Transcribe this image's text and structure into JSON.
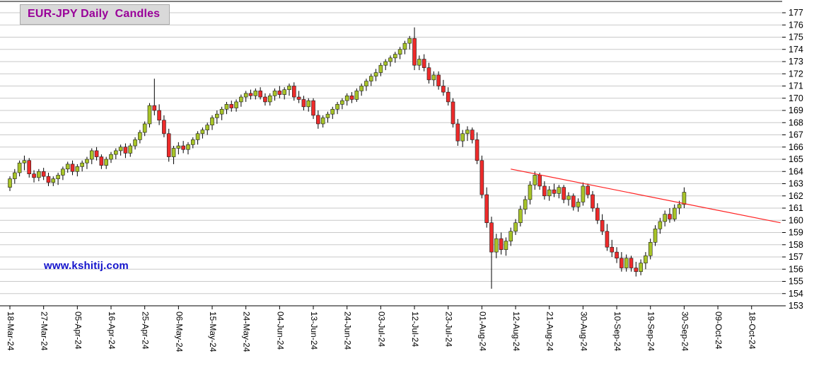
{
  "header": {
    "title": "EUR-JPY Daily  Candles"
  },
  "watermark": {
    "text": "www.kshitij.com"
  },
  "colors": {
    "up_candle": "#a8c428",
    "down_candle": "#ee2b2b",
    "candle_border": "#1a1a1a",
    "wick": "#000000",
    "trendline": "#ff2222",
    "grid": "#c9c9c9",
    "axis": "#000000",
    "title_text": "#990099",
    "title_bg": "#d9d9d9",
    "watermark_text": "#1414cc"
  },
  "chart_data": {
    "type": "candlestick",
    "title": "EUR-JPY Daily  Candles",
    "ylabel": "",
    "xlabel": "",
    "ylim": [
      153,
      177
    ],
    "y_tick_step": 1,
    "grid": true,
    "legend_position": "none",
    "x_labels": [
      {
        "slot": 0,
        "label": "18-Mar-24"
      },
      {
        "slot": 7,
        "label": "27-Mar-24"
      },
      {
        "slot": 14,
        "label": "05-Apr-24"
      },
      {
        "slot": 21,
        "label": "16-Apr-24"
      },
      {
        "slot": 28,
        "label": "25-Apr-24"
      },
      {
        "slot": 35,
        "label": "06-May-24"
      },
      {
        "slot": 42,
        "label": "15-May-24"
      },
      {
        "slot": 49,
        "label": "24-May-24"
      },
      {
        "slot": 56,
        "label": "04-Jun-24"
      },
      {
        "slot": 63,
        "label": "13-Jun-24"
      },
      {
        "slot": 70,
        "label": "24-Jun-24"
      },
      {
        "slot": 77,
        "label": "03-Jul-24"
      },
      {
        "slot": 84,
        "label": "12-Jul-24"
      },
      {
        "slot": 91,
        "label": "23-Jul-24"
      },
      {
        "slot": 98,
        "label": "01-Aug-24"
      },
      {
        "slot": 105,
        "label": "12-Aug-24"
      },
      {
        "slot": 112,
        "label": "21-Aug-24"
      },
      {
        "slot": 119,
        "label": "30-Aug-24"
      },
      {
        "slot": 126,
        "label": "10-Sep-24"
      },
      {
        "slot": 133,
        "label": "19-Sep-24"
      },
      {
        "slot": 140,
        "label": "30-Sep-24"
      },
      {
        "slot": 147,
        "label": "09-Oct-24"
      },
      {
        "slot": 154,
        "label": "18-Oct-24"
      }
    ],
    "ohlc_format": [
      "date",
      "open",
      "high",
      "low",
      "close"
    ],
    "candles": [
      [
        "18-Mar-24",
        162.7,
        163.6,
        162.4,
        163.4
      ],
      [
        "19-Mar-24",
        163.4,
        164.2,
        163.0,
        163.9
      ],
      [
        "20-Mar-24",
        163.9,
        164.9,
        163.6,
        164.7
      ],
      [
        "21-Mar-24",
        164.7,
        165.3,
        164.1,
        164.9
      ],
      [
        "22-Mar-24",
        164.9,
        165.1,
        163.5,
        163.8
      ],
      [
        "25-Mar-24",
        163.8,
        164.1,
        163.1,
        163.5
      ],
      [
        "26-Mar-24",
        163.5,
        164.2,
        163.2,
        164.0
      ],
      [
        "27-Mar-24",
        164.0,
        164.3,
        163.3,
        163.6
      ],
      [
        "28-Mar-24",
        163.6,
        163.9,
        162.8,
        163.1
      ],
      [
        "29-Mar-24",
        163.1,
        163.6,
        162.8,
        163.4
      ],
      [
        "01-Apr-24",
        163.4,
        163.9,
        162.9,
        163.7
      ],
      [
        "02-Apr-24",
        163.7,
        164.4,
        163.3,
        164.2
      ],
      [
        "03-Apr-24",
        164.2,
        164.8,
        163.9,
        164.6
      ],
      [
        "04-Apr-24",
        164.6,
        164.9,
        163.7,
        164.0
      ],
      [
        "05-Apr-24",
        164.0,
        164.6,
        163.6,
        164.4
      ],
      [
        "08-Apr-24",
        164.4,
        164.9,
        164.0,
        164.7
      ],
      [
        "09-Apr-24",
        164.7,
        165.2,
        164.2,
        165.0
      ],
      [
        "10-Apr-24",
        165.0,
        165.9,
        164.6,
        165.7
      ],
      [
        "11-Apr-24",
        165.7,
        166.0,
        164.9,
        165.2
      ],
      [
        "12-Apr-24",
        165.2,
        165.4,
        164.2,
        164.5
      ],
      [
        "15-Apr-24",
        164.5,
        165.2,
        164.2,
        165.0
      ],
      [
        "16-Apr-24",
        165.0,
        165.6,
        164.7,
        165.4
      ],
      [
        "17-Apr-24",
        165.4,
        165.9,
        165.0,
        165.7
      ],
      [
        "18-Apr-24",
        165.7,
        166.2,
        165.3,
        166.0
      ],
      [
        "19-Apr-24",
        166.0,
        166.3,
        165.1,
        165.5
      ],
      [
        "22-Apr-24",
        165.5,
        166.3,
        165.2,
        166.1
      ],
      [
        "23-Apr-24",
        166.1,
        166.8,
        165.8,
        166.6
      ],
      [
        "24-Apr-24",
        166.6,
        167.4,
        166.3,
        167.2
      ],
      [
        "25-Apr-24",
        167.2,
        168.1,
        166.9,
        167.9
      ],
      [
        "26-Apr-24",
        167.9,
        169.6,
        167.6,
        169.4
      ],
      [
        "29-Apr-24",
        169.4,
        171.6,
        168.6,
        169.0
      ],
      [
        "30-Apr-24",
        169.0,
        169.5,
        167.8,
        168.2
      ],
      [
        "01-May-24",
        168.2,
        168.6,
        166.8,
        167.1
      ],
      [
        "02-May-24",
        167.1,
        167.5,
        164.8,
        165.2
      ],
      [
        "03-May-24",
        165.2,
        166.1,
        164.6,
        165.9
      ],
      [
        "06-May-24",
        165.9,
        166.4,
        165.4,
        166.1
      ],
      [
        "07-May-24",
        166.1,
        166.5,
        165.5,
        165.8
      ],
      [
        "08-May-24",
        165.8,
        166.4,
        165.4,
        166.2
      ],
      [
        "09-May-24",
        166.2,
        166.8,
        165.9,
        166.6
      ],
      [
        "10-May-24",
        166.6,
        167.3,
        166.2,
        167.1
      ],
      [
        "13-May-24",
        167.1,
        167.6,
        166.7,
        167.4
      ],
      [
        "14-May-24",
        167.4,
        168.0,
        167.0,
        167.8
      ],
      [
        "15-May-24",
        167.8,
        168.6,
        167.4,
        168.4
      ],
      [
        "16-May-24",
        168.4,
        169.0,
        167.9,
        168.7
      ],
      [
        "17-May-24",
        168.7,
        169.3,
        168.2,
        169.1
      ],
      [
        "20-May-24",
        169.1,
        169.7,
        168.7,
        169.5
      ],
      [
        "21-May-24",
        169.5,
        169.8,
        168.9,
        169.2
      ],
      [
        "22-May-24",
        169.2,
        169.9,
        168.9,
        169.7
      ],
      [
        "23-May-24",
        169.7,
        170.3,
        169.3,
        170.1
      ],
      [
        "24-May-24",
        170.1,
        170.6,
        169.7,
        170.4
      ],
      [
        "27-May-24",
        170.4,
        170.7,
        169.9,
        170.2
      ],
      [
        "28-May-24",
        170.2,
        170.8,
        169.9,
        170.6
      ],
      [
        "29-May-24",
        170.6,
        170.9,
        169.9,
        170.1
      ],
      [
        "30-May-24",
        170.1,
        170.4,
        169.4,
        169.7
      ],
      [
        "31-May-24",
        169.7,
        170.4,
        169.4,
        170.2
      ],
      [
        "03-Jun-24",
        170.2,
        170.8,
        169.8,
        170.6
      ],
      [
        "04-Jun-24",
        170.6,
        171.0,
        170.0,
        170.3
      ],
      [
        "05-Jun-24",
        170.3,
        170.9,
        169.9,
        170.7
      ],
      [
        "06-Jun-24",
        170.7,
        171.2,
        170.2,
        171.0
      ],
      [
        "07-Jun-24",
        171.0,
        171.3,
        169.8,
        170.1
      ],
      [
        "10-Jun-24",
        170.1,
        170.6,
        169.6,
        169.9
      ],
      [
        "11-Jun-24",
        169.9,
        170.2,
        169.0,
        169.3
      ],
      [
        "12-Jun-24",
        169.3,
        170.0,
        168.9,
        169.8
      ],
      [
        "13-Jun-24",
        169.8,
        170.0,
        168.3,
        168.6
      ],
      [
        "14-Jun-24",
        168.6,
        169.0,
        167.5,
        167.9
      ],
      [
        "17-Jun-24",
        167.9,
        168.6,
        167.6,
        168.4
      ],
      [
        "18-Jun-24",
        168.4,
        168.9,
        168.0,
        168.7
      ],
      [
        "19-Jun-24",
        168.7,
        169.3,
        168.3,
        169.1
      ],
      [
        "20-Jun-24",
        169.1,
        169.7,
        168.7,
        169.5
      ],
      [
        "21-Jun-24",
        169.5,
        170.0,
        169.1,
        169.8
      ],
      [
        "24-Jun-24",
        169.8,
        170.4,
        169.4,
        170.2
      ],
      [
        "25-Jun-24",
        170.2,
        170.5,
        169.6,
        169.9
      ],
      [
        "26-Jun-24",
        169.9,
        170.8,
        169.7,
        170.6
      ],
      [
        "27-Jun-24",
        170.6,
        171.2,
        170.2,
        171.0
      ],
      [
        "28-Jun-24",
        171.0,
        171.6,
        170.6,
        171.4
      ],
      [
        "01-Jul-24",
        171.4,
        172.0,
        171.0,
        171.8
      ],
      [
        "02-Jul-24",
        171.8,
        172.4,
        171.4,
        172.1
      ],
      [
        "03-Jul-24",
        172.1,
        172.9,
        171.8,
        172.7
      ],
      [
        "04-Jul-24",
        172.7,
        173.2,
        172.3,
        173.0
      ],
      [
        "05-Jul-24",
        173.0,
        173.5,
        172.6,
        173.3
      ],
      [
        "08-Jul-24",
        173.3,
        173.8,
        172.9,
        173.6
      ],
      [
        "09-Jul-24",
        173.6,
        174.2,
        173.2,
        174.0
      ],
      [
        "10-Jul-24",
        174.0,
        174.7,
        173.6,
        174.5
      ],
      [
        "11-Jul-24",
        174.5,
        175.1,
        174.0,
        174.9
      ],
      [
        "12-Jul-24",
        174.9,
        175.8,
        172.3,
        172.7
      ],
      [
        "15-Jul-24",
        172.7,
        173.5,
        172.3,
        173.2
      ],
      [
        "16-Jul-24",
        173.2,
        173.6,
        172.2,
        172.5
      ],
      [
        "17-Jul-24",
        172.5,
        172.9,
        171.2,
        171.5
      ],
      [
        "18-Jul-24",
        171.5,
        172.2,
        171.0,
        171.9
      ],
      [
        "19-Jul-24",
        171.9,
        172.2,
        170.7,
        171.0
      ],
      [
        "22-Jul-24",
        171.0,
        171.5,
        170.2,
        170.5
      ],
      [
        "23-Jul-24",
        170.5,
        170.9,
        169.4,
        169.7
      ],
      [
        "24-Jul-24",
        169.7,
        170.0,
        167.6,
        167.9
      ],
      [
        "25-Jul-24",
        167.9,
        168.3,
        166.1,
        166.5
      ],
      [
        "26-Jul-24",
        166.5,
        167.4,
        166.0,
        167.1
      ],
      [
        "29-Jul-24",
        167.1,
        167.7,
        166.5,
        167.4
      ],
      [
        "30-Jul-24",
        167.4,
        167.6,
        166.3,
        166.6
      ],
      [
        "31-Jul-24",
        166.6,
        167.2,
        164.6,
        164.9
      ],
      [
        "01-Aug-24",
        164.9,
        165.3,
        161.8,
        162.1
      ],
      [
        "02-Aug-24",
        162.1,
        162.7,
        159.4,
        159.8
      ],
      [
        "05-Aug-24",
        159.8,
        160.3,
        154.4,
        157.4
      ],
      [
        "06-Aug-24",
        157.4,
        158.9,
        156.9,
        158.5
      ],
      [
        "07-Aug-24",
        158.5,
        159.0,
        157.2,
        157.6
      ],
      [
        "08-Aug-24",
        157.6,
        158.6,
        157.1,
        158.3
      ],
      [
        "09-Aug-24",
        158.3,
        159.4,
        157.9,
        159.1
      ],
      [
        "12-Aug-24",
        159.1,
        160.1,
        158.8,
        159.8
      ],
      [
        "13-Aug-24",
        159.8,
        161.2,
        159.5,
        160.9
      ],
      [
        "14-Aug-24",
        160.9,
        162.0,
        160.5,
        161.7
      ],
      [
        "15-Aug-24",
        161.7,
        163.2,
        161.3,
        162.9
      ],
      [
        "16-Aug-24",
        162.9,
        164.0,
        162.5,
        163.7
      ],
      [
        "19-Aug-24",
        163.7,
        163.9,
        162.5,
        162.8
      ],
      [
        "20-Aug-24",
        162.8,
        163.2,
        161.7,
        162.0
      ],
      [
        "21-Aug-24",
        162.0,
        162.8,
        161.6,
        162.5
      ],
      [
        "22-Aug-24",
        162.5,
        163.0,
        161.9,
        162.2
      ],
      [
        "23-Aug-24",
        162.2,
        162.9,
        161.8,
        162.7
      ],
      [
        "26-Aug-24",
        162.7,
        162.9,
        161.4,
        161.7
      ],
      [
        "27-Aug-24",
        161.7,
        162.3,
        161.2,
        162.0
      ],
      [
        "28-Aug-24",
        162.0,
        162.2,
        160.8,
        161.1
      ],
      [
        "29-Aug-24",
        161.1,
        161.8,
        160.7,
        161.5
      ],
      [
        "30-Aug-24",
        161.5,
        163.1,
        161.2,
        162.8
      ],
      [
        "02-Sep-24",
        162.8,
        163.0,
        161.8,
        162.1
      ],
      [
        "03-Sep-24",
        162.1,
        162.4,
        160.7,
        161.0
      ],
      [
        "04-Sep-24",
        161.0,
        161.4,
        159.7,
        160.0
      ],
      [
        "05-Sep-24",
        160.0,
        160.5,
        158.8,
        159.1
      ],
      [
        "06-Sep-24",
        159.1,
        159.7,
        157.5,
        157.8
      ],
      [
        "09-Sep-24",
        157.8,
        158.4,
        157.0,
        157.4
      ],
      [
        "10-Sep-24",
        157.4,
        157.8,
        156.5,
        156.9
      ],
      [
        "11-Sep-24",
        156.9,
        157.4,
        155.8,
        156.1
      ],
      [
        "12-Sep-24",
        156.1,
        157.2,
        155.8,
        156.9
      ],
      [
        "13-Sep-24",
        156.9,
        157.1,
        155.8,
        156.1
      ],
      [
        "16-Sep-24",
        156.1,
        156.6,
        155.4,
        155.8
      ],
      [
        "17-Sep-24",
        155.8,
        156.8,
        155.5,
        156.5
      ],
      [
        "18-Sep-24",
        156.5,
        157.4,
        156.0,
        157.1
      ],
      [
        "19-Sep-24",
        157.1,
        158.5,
        156.8,
        158.2
      ],
      [
        "20-Sep-24",
        158.2,
        159.6,
        157.9,
        159.3
      ],
      [
        "23-Sep-24",
        159.3,
        160.2,
        158.9,
        159.9
      ],
      [
        "24-Sep-24",
        159.9,
        160.8,
        159.5,
        160.5
      ],
      [
        "25-Sep-24",
        160.5,
        161.0,
        159.8,
        160.1
      ],
      [
        "26-Sep-24",
        160.1,
        161.3,
        159.9,
        161.0
      ],
      [
        "27-Sep-24",
        161.0,
        161.6,
        160.5,
        161.3
      ],
      [
        "30-Sep-24",
        161.3,
        162.7,
        161.0,
        162.3
      ]
    ],
    "trendline": {
      "x1_slot": 104,
      "value1": 164.2,
      "x2_slot": 160,
      "value2": 159.8
    }
  }
}
